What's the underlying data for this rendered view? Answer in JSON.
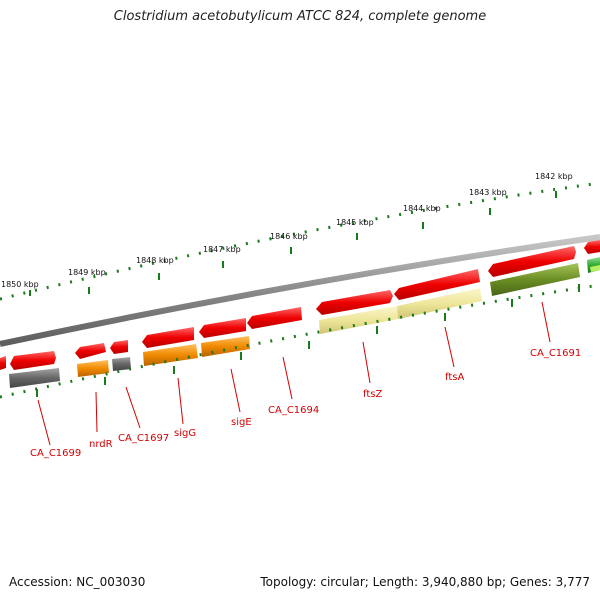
{
  "title": "Clostridium acetobutylicum ATCC 824, complete genome",
  "footer": {
    "accession": "Accession: NC_003030",
    "summary": "Topology: circular; Length: 3,940,880 bp; Genes: 3,777"
  },
  "ruler_labels": [
    "1850 kbp",
    "1849 kbp",
    "1848 kbp",
    "1847 kbp",
    "1846 kbp",
    "1845 kbp",
    "1844 kbp",
    "1843 kbp",
    "1842 kbp"
  ],
  "gene_labels": [
    "CA_C1699",
    "nrdR",
    "CA_C1697",
    "sigG",
    "sigE",
    "CA_C1694",
    "ftsZ",
    "ftsA",
    "CA_C1691"
  ],
  "colors": {
    "cds": "#e80000",
    "backbone": "#8a8a8a",
    "ruler_ticks": "#1b7a1b",
    "label": "#d40000",
    "cog_gray": "#666666",
    "cog_orange": "#f08a00",
    "cog_yellow": "#eee69a",
    "cog_olive": "#6b8e23",
    "cog_green": "#33aa33"
  }
}
